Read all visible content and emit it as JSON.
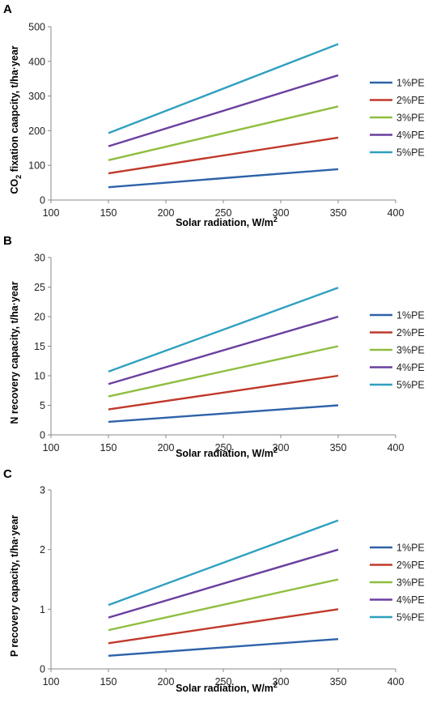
{
  "chart_data": [
    {
      "type": "line",
      "panel_label": "A",
      "xlabel": "Solar radiation, W/m",
      "xlabel_sup": "2",
      "ylabel_parts": [
        "CO",
        "2",
        " fixation caapcity, t/ha·year"
      ],
      "x_ticks": [
        100,
        150,
        200,
        250,
        300,
        350,
        400
      ],
      "y_ticks": [
        0,
        100,
        200,
        300,
        400,
        500
      ],
      "xlim": [
        100,
        400
      ],
      "ylim": [
        0,
        500
      ],
      "grid": false,
      "legend_position": "right",
      "series": [
        {
          "name": "1%PE",
          "color": "#2e62a8",
          "x": [
            150,
            350
          ],
          "y": [
            37,
            89
          ]
        },
        {
          "name": "2%PE",
          "color": "#c0392b",
          "x": [
            150,
            350
          ],
          "y": [
            77,
            180
          ]
        },
        {
          "name": "3%PE",
          "color": "#8fbe3f",
          "x": [
            150,
            350
          ],
          "y": [
            115,
            270
          ]
        },
        {
          "name": "4%PE",
          "color": "#6b3fa0",
          "x": [
            150,
            350
          ],
          "y": [
            155,
            360
          ]
        },
        {
          "name": "5%PE",
          "color": "#2fa0c0",
          "x": [
            150,
            350
          ],
          "y": [
            193,
            450
          ]
        }
      ]
    },
    {
      "type": "line",
      "panel_label": "B",
      "xlabel": "Solar radiation, W/m",
      "xlabel_sup": "2",
      "ylabel_parts": [
        "N recovery capacity, t/ha·year"
      ],
      "x_ticks": [
        100,
        150,
        200,
        250,
        300,
        350,
        400
      ],
      "y_ticks": [
        0,
        5,
        10,
        15,
        20,
        25,
        30
      ],
      "xlim": [
        100,
        400
      ],
      "ylim": [
        0,
        30
      ],
      "grid": false,
      "legend_position": "right",
      "series": [
        {
          "name": "1%PE",
          "color": "#2e62a8",
          "x": [
            150,
            350
          ],
          "y": [
            2.2,
            5.0
          ]
        },
        {
          "name": "2%PE",
          "color": "#c0392b",
          "x": [
            150,
            350
          ],
          "y": [
            4.3,
            10.0
          ]
        },
        {
          "name": "3%PE",
          "color": "#8fbe3f",
          "x": [
            150,
            350
          ],
          "y": [
            6.5,
            15.0
          ]
        },
        {
          "name": "4%PE",
          "color": "#6b3fa0",
          "x": [
            150,
            350
          ],
          "y": [
            8.6,
            20.0
          ]
        },
        {
          "name": "5%PE",
          "color": "#2fa0c0",
          "x": [
            150,
            350
          ],
          "y": [
            10.7,
            24.9
          ]
        }
      ]
    },
    {
      "type": "line",
      "panel_label": "C",
      "xlabel": "Solar radiation, W/m",
      "xlabel_sup": "2",
      "ylabel_parts": [
        "P recovery capacity, t/ha·year"
      ],
      "x_ticks": [
        100,
        150,
        200,
        250,
        300,
        350,
        400
      ],
      "y_ticks": [
        0,
        1,
        2,
        3
      ],
      "xlim": [
        100,
        400
      ],
      "ylim": [
        0,
        3
      ],
      "grid": false,
      "legend_position": "right",
      "series": [
        {
          "name": "1%PE",
          "color": "#2e62a8",
          "x": [
            150,
            350
          ],
          "y": [
            0.22,
            0.5
          ]
        },
        {
          "name": "2%PE",
          "color": "#c0392b",
          "x": [
            150,
            350
          ],
          "y": [
            0.43,
            1.0
          ]
        },
        {
          "name": "3%PE",
          "color": "#8fbe3f",
          "x": [
            150,
            350
          ],
          "y": [
            0.65,
            1.5
          ]
        },
        {
          "name": "4%PE",
          "color": "#6b3fa0",
          "x": [
            150,
            350
          ],
          "y": [
            0.86,
            2.0
          ]
        },
        {
          "name": "5%PE",
          "color": "#2fa0c0",
          "x": [
            150,
            350
          ],
          "y": [
            1.07,
            2.49
          ]
        }
      ]
    }
  ]
}
